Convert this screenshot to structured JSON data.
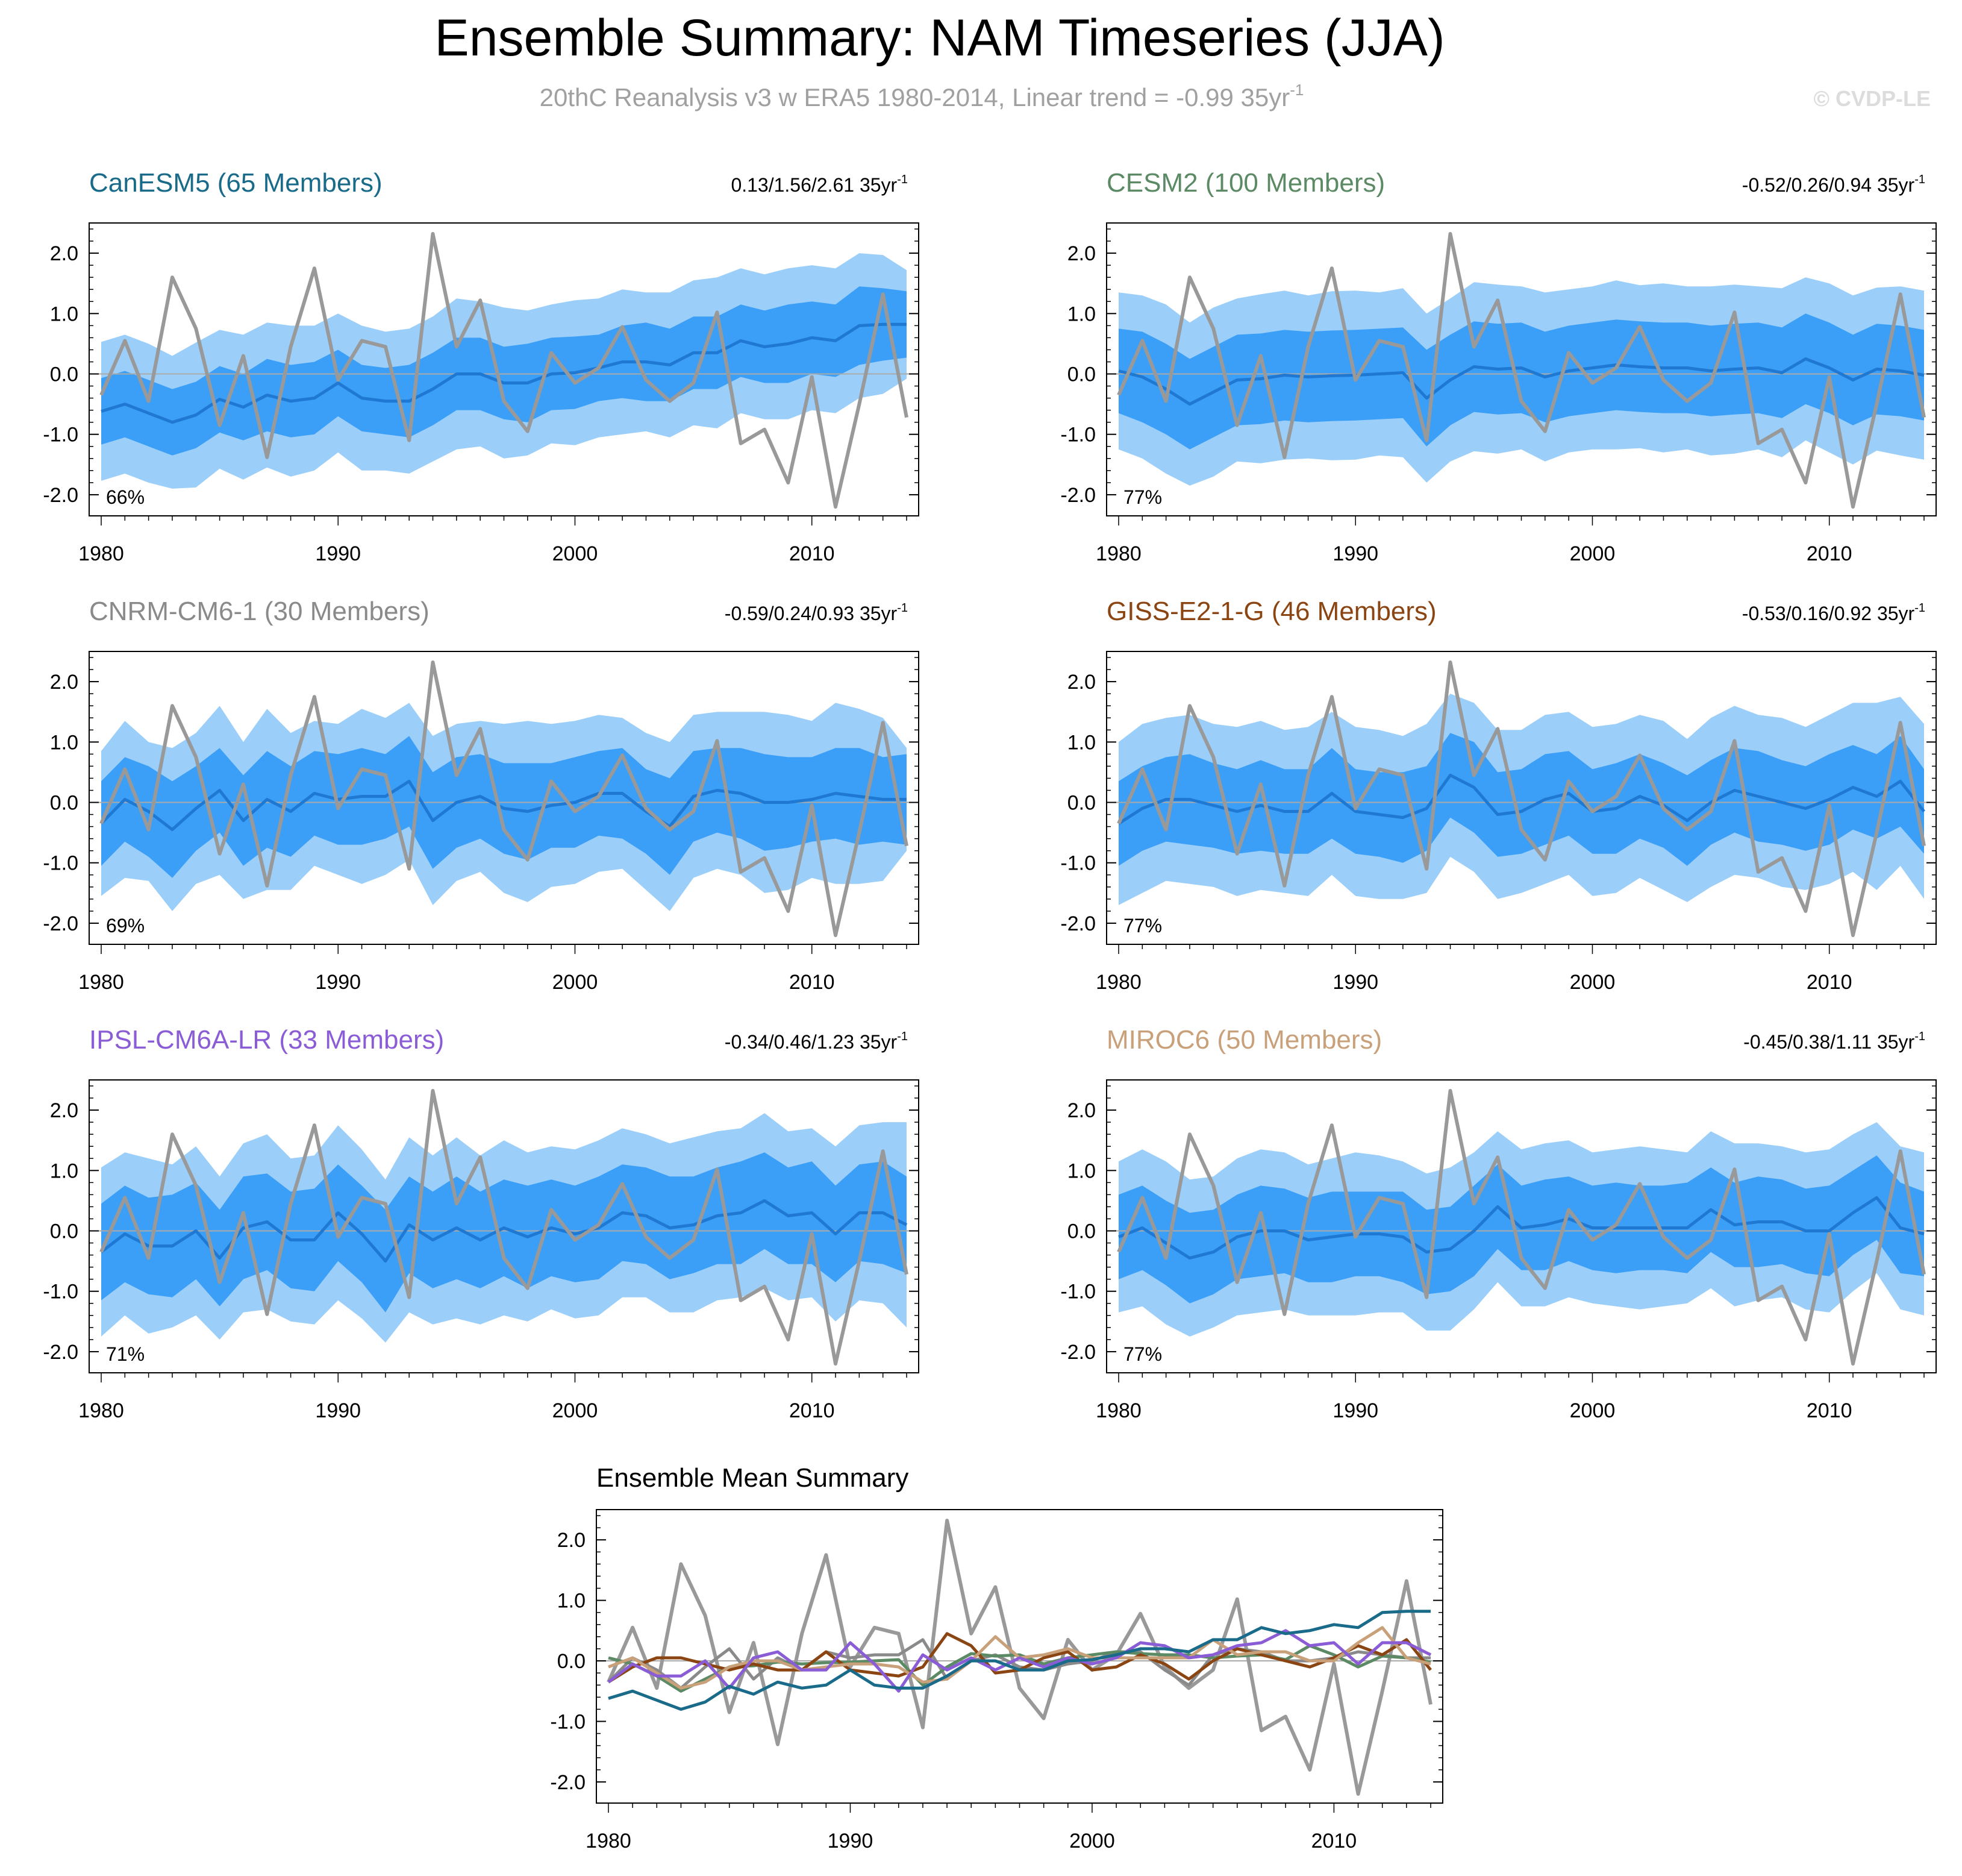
{
  "title": "Ensemble Summary: NAM Timeseries (JJA)",
  "subtitle": "20thC Reanalysis v3 w ERA5 1980-2014, Linear trend = -0.99 35yr",
  "subtitle_sup": "-1",
  "watermark": "© CVDP-LE",
  "colors": {
    "outer_band": "#9bcffa",
    "inner_band": "#3b9ff7",
    "ens_mean": "#1f78d1",
    "obs": "#999999",
    "zero_line": "#aaaaaa"
  },
  "chart_data": {
    "type": "line",
    "x": [
      1980,
      1981,
      1982,
      1983,
      1984,
      1985,
      1986,
      1987,
      1988,
      1989,
      1990,
      1991,
      1992,
      1993,
      1994,
      1995,
      1996,
      1997,
      1998,
      1999,
      2000,
      2001,
      2002,
      2003,
      2004,
      2005,
      2006,
      2007,
      2008,
      2009,
      2010,
      2011,
      2012,
      2013,
      2014
    ],
    "xticks": [
      "1980",
      "1990",
      "2000",
      "2010"
    ],
    "yticks": [
      "2.0",
      "1.0",
      "0.0",
      "-1.0",
      "-2.0"
    ],
    "ylim": [
      -2.35,
      2.5
    ],
    "observations": {
      "name": "20thC Reanalysis v3 w ERA5",
      "values": [
        -0.35,
        0.55,
        -0.45,
        1.6,
        0.75,
        -0.85,
        0.3,
        -1.38,
        0.45,
        1.75,
        -0.1,
        0.55,
        0.45,
        -1.1,
        2.32,
        0.45,
        1.22,
        -0.45,
        -0.95,
        0.35,
        -0.15,
        0.1,
        0.78,
        -0.1,
        -0.45,
        -0.15,
        1.02,
        -1.15,
        -0.92,
        -1.8,
        -0.05,
        -2.2,
        -0.5,
        1.32,
        -0.72
      ]
    },
    "panels": [
      {
        "model": "CanESM5",
        "members": "(65 Members)",
        "color": "#1a6b8a",
        "trend": "0.13/1.56/2.61 35yr",
        "trend_sup": "-1",
        "percent": "66%",
        "mean": [
          -0.62,
          -0.5,
          -0.65,
          -0.8,
          -0.68,
          -0.42,
          -0.55,
          -0.35,
          -0.45,
          -0.4,
          -0.15,
          -0.4,
          -0.45,
          -0.45,
          -0.25,
          0.0,
          0.0,
          -0.15,
          -0.15,
          0.0,
          0.02,
          0.1,
          0.2,
          0.2,
          0.15,
          0.35,
          0.35,
          0.55,
          0.45,
          0.5,
          0.6,
          0.55,
          0.8,
          0.82,
          0.82
        ],
        "inner_half": [
          0.55,
          0.55,
          0.55,
          0.55,
          0.55,
          0.55,
          0.55,
          0.6,
          0.6,
          0.6,
          0.55,
          0.55,
          0.55,
          0.6,
          0.6,
          0.6,
          0.6,
          0.6,
          0.65,
          0.6,
          0.6,
          0.55,
          0.6,
          0.65,
          0.6,
          0.6,
          0.6,
          0.6,
          0.6,
          0.65,
          0.6,
          0.6,
          0.65,
          0.6,
          0.55
        ],
        "outer_half": [
          1.15,
          1.15,
          1.15,
          1.1,
          1.2,
          1.15,
          1.2,
          1.2,
          1.25,
          1.2,
          1.15,
          1.2,
          1.15,
          1.2,
          1.2,
          1.25,
          1.2,
          1.25,
          1.2,
          1.15,
          1.2,
          1.15,
          1.2,
          1.15,
          1.2,
          1.2,
          1.25,
          1.2,
          1.2,
          1.25,
          1.2,
          1.2,
          1.2,
          1.15,
          0.9
        ]
      },
      {
        "model": "CESM2",
        "members": "(100 Members)",
        "color": "#5c8a64",
        "trend": "-0.52/0.26/0.94 35yr",
        "trend_sup": "-1",
        "percent": "77%",
        "mean": [
          0.05,
          -0.05,
          -0.25,
          -0.5,
          -0.3,
          -0.1,
          -0.08,
          -0.02,
          -0.05,
          -0.03,
          -0.02,
          0.0,
          0.02,
          -0.4,
          -0.1,
          0.12,
          0.08,
          0.1,
          -0.05,
          0.05,
          0.1,
          0.15,
          0.12,
          0.1,
          0.1,
          0.05,
          0.08,
          0.1,
          0.02,
          0.25,
          0.1,
          -0.1,
          0.08,
          0.05,
          -0.02
        ],
        "inner_half": [
          0.7,
          0.75,
          0.75,
          0.75,
          0.75,
          0.75,
          0.75,
          0.75,
          0.75,
          0.75,
          0.75,
          0.75,
          0.75,
          0.8,
          0.75,
          0.75,
          0.75,
          0.75,
          0.75,
          0.75,
          0.75,
          0.75,
          0.75,
          0.75,
          0.75,
          0.75,
          0.75,
          0.75,
          0.75,
          0.75,
          0.75,
          0.75,
          0.75,
          0.75,
          0.75
        ],
        "outer_half": [
          1.3,
          1.35,
          1.4,
          1.35,
          1.4,
          1.35,
          1.4,
          1.4,
          1.35,
          1.4,
          1.4,
          1.35,
          1.4,
          1.4,
          1.35,
          1.4,
          1.4,
          1.35,
          1.4,
          1.35,
          1.35,
          1.4,
          1.35,
          1.4,
          1.35,
          1.4,
          1.4,
          1.35,
          1.4,
          1.35,
          1.4,
          1.4,
          1.35,
          1.4,
          1.4
        ]
      },
      {
        "model": "CNRM-CM6-1",
        "members": "(30 Members)",
        "color": "#8a8a8a",
        "trend": "-0.59/0.24/0.93 35yr",
        "trend_sup": "-1",
        "percent": "69%",
        "mean": [
          -0.35,
          0.05,
          -0.15,
          -0.45,
          -0.1,
          0.2,
          -0.3,
          0.05,
          -0.15,
          0.15,
          0.05,
          0.1,
          0.1,
          0.35,
          -0.3,
          0.0,
          0.1,
          -0.1,
          -0.15,
          -0.05,
          0.0,
          0.15,
          0.15,
          -0.15,
          -0.4,
          0.1,
          0.2,
          0.15,
          0.0,
          0.0,
          0.05,
          0.15,
          0.1,
          0.05,
          0.05
        ],
        "inner_half": [
          0.7,
          0.7,
          0.75,
          0.8,
          0.7,
          0.7,
          0.75,
          0.8,
          0.75,
          0.7,
          0.75,
          0.8,
          0.7,
          0.75,
          0.8,
          0.75,
          0.7,
          0.75,
          0.8,
          0.7,
          0.75,
          0.7,
          0.75,
          0.7,
          0.8,
          0.75,
          0.7,
          0.75,
          0.8,
          0.75,
          0.7,
          0.75,
          0.8,
          0.7,
          0.75
        ],
        "outer_half": [
          1.2,
          1.3,
          1.15,
          1.35,
          1.25,
          1.4,
          1.3,
          1.5,
          1.3,
          1.2,
          1.25,
          1.45,
          1.3,
          1.3,
          1.4,
          1.3,
          1.25,
          1.4,
          1.5,
          1.35,
          1.35,
          1.3,
          1.25,
          1.3,
          1.4,
          1.35,
          1.3,
          1.35,
          1.5,
          1.45,
          1.3,
          1.5,
          1.45,
          1.35,
          0.85
        ]
      },
      {
        "model": "GISS-E2-1-G",
        "members": "(46 Members)",
        "color": "#8b4513",
        "trend": "-0.53/0.16/0.92 35yr",
        "trend_sup": "-1",
        "percent": "77%",
        "mean": [
          -0.35,
          -0.1,
          0.05,
          0.05,
          -0.05,
          -0.15,
          -0.05,
          -0.15,
          -0.15,
          0.15,
          -0.15,
          -0.2,
          -0.25,
          -0.1,
          0.45,
          0.25,
          -0.2,
          -0.15,
          0.05,
          0.15,
          -0.15,
          -0.1,
          0.1,
          -0.05,
          -0.3,
          0.0,
          0.2,
          0.1,
          0.0,
          -0.1,
          0.05,
          0.25,
          0.1,
          0.35,
          -0.15
        ],
        "inner_half": [
          0.7,
          0.7,
          0.7,
          0.75,
          0.7,
          0.7,
          0.75,
          0.7,
          0.7,
          0.75,
          0.7,
          0.7,
          0.75,
          0.7,
          0.7,
          0.75,
          0.7,
          0.7,
          0.75,
          0.7,
          0.7,
          0.75,
          0.7,
          0.7,
          0.75,
          0.7,
          0.7,
          0.75,
          0.7,
          0.7,
          0.75,
          0.7,
          0.7,
          0.75,
          0.7
        ],
        "outer_half": [
          1.35,
          1.4,
          1.35,
          1.4,
          1.35,
          1.4,
          1.4,
          1.35,
          1.4,
          1.35,
          1.4,
          1.4,
          1.35,
          1.4,
          1.35,
          1.4,
          1.4,
          1.35,
          1.4,
          1.35,
          1.4,
          1.4,
          1.35,
          1.4,
          1.35,
          1.4,
          1.4,
          1.35,
          1.4,
          1.35,
          1.4,
          1.4,
          1.55,
          1.4,
          1.45
        ]
      },
      {
        "model": "IPSL-CM6A-LR",
        "members": "(33 Members)",
        "color": "#8a5cd6",
        "trend": "-0.34/0.46/1.23 35yr",
        "trend_sup": "-1",
        "percent": "71%",
        "mean": [
          -0.35,
          -0.05,
          -0.25,
          -0.25,
          0.0,
          -0.45,
          0.05,
          0.15,
          -0.15,
          -0.15,
          0.3,
          -0.05,
          -0.5,
          0.1,
          -0.15,
          0.05,
          -0.15,
          0.05,
          -0.1,
          0.05,
          -0.05,
          0.05,
          0.3,
          0.25,
          0.05,
          0.1,
          0.25,
          0.3,
          0.5,
          0.25,
          0.3,
          -0.05,
          0.3,
          0.3,
          0.1
        ],
        "inner_half": [
          0.8,
          0.8,
          0.8,
          0.85,
          0.8,
          0.8,
          0.85,
          0.8,
          0.8,
          0.85,
          0.8,
          0.8,
          0.85,
          0.8,
          0.8,
          0.85,
          0.8,
          0.8,
          0.85,
          0.8,
          0.8,
          0.85,
          0.8,
          0.8,
          0.85,
          0.8,
          0.8,
          0.85,
          0.8,
          0.8,
          0.85,
          0.8,
          0.8,
          0.85,
          0.8
        ],
        "outer_half": [
          1.4,
          1.35,
          1.45,
          1.35,
          1.4,
          1.35,
          1.4,
          1.45,
          1.35,
          1.4,
          1.45,
          1.4,
          1.35,
          1.45,
          1.4,
          1.5,
          1.4,
          1.45,
          1.4,
          1.35,
          1.4,
          1.45,
          1.4,
          1.35,
          1.4,
          1.45,
          1.4,
          1.4,
          1.45,
          1.4,
          1.4,
          1.45,
          1.45,
          1.5,
          1.7
        ]
      },
      {
        "model": "MIROC6",
        "members": "(50 Members)",
        "color": "#c8a07a",
        "trend": "-0.45/0.38/1.11 35yr",
        "trend_sup": "-1",
        "percent": "77%",
        "mean": [
          -0.1,
          0.05,
          -0.2,
          -0.45,
          -0.35,
          -0.1,
          0.0,
          0.0,
          -0.15,
          -0.1,
          -0.05,
          -0.05,
          -0.1,
          -0.35,
          -0.3,
          0.0,
          0.4,
          0.05,
          0.1,
          0.2,
          0.05,
          0.05,
          0.05,
          0.05,
          0.05,
          0.35,
          0.1,
          0.15,
          0.15,
          0.0,
          0.0,
          0.3,
          0.55,
          0.05,
          -0.05
        ],
        "inner_half": [
          0.7,
          0.7,
          0.7,
          0.75,
          0.7,
          0.7,
          0.75,
          0.7,
          0.7,
          0.75,
          0.7,
          0.7,
          0.75,
          0.7,
          0.7,
          0.75,
          0.7,
          0.7,
          0.75,
          0.7,
          0.7,
          0.75,
          0.7,
          0.7,
          0.75,
          0.7,
          0.7,
          0.75,
          0.7,
          0.7,
          0.75,
          0.7,
          0.7,
          0.75,
          0.7
        ],
        "outer_half": [
          1.25,
          1.3,
          1.35,
          1.3,
          1.25,
          1.3,
          1.35,
          1.3,
          1.25,
          1.3,
          1.35,
          1.3,
          1.25,
          1.3,
          1.35,
          1.3,
          1.25,
          1.3,
          1.35,
          1.3,
          1.25,
          1.3,
          1.35,
          1.3,
          1.25,
          1.3,
          1.35,
          1.3,
          1.25,
          1.3,
          1.35,
          1.3,
          1.25,
          1.35,
          1.35
        ]
      }
    ],
    "summary": {
      "title": "Ensemble Mean Summary",
      "ylim": [
        -2.35,
        2.5
      ]
    }
  }
}
